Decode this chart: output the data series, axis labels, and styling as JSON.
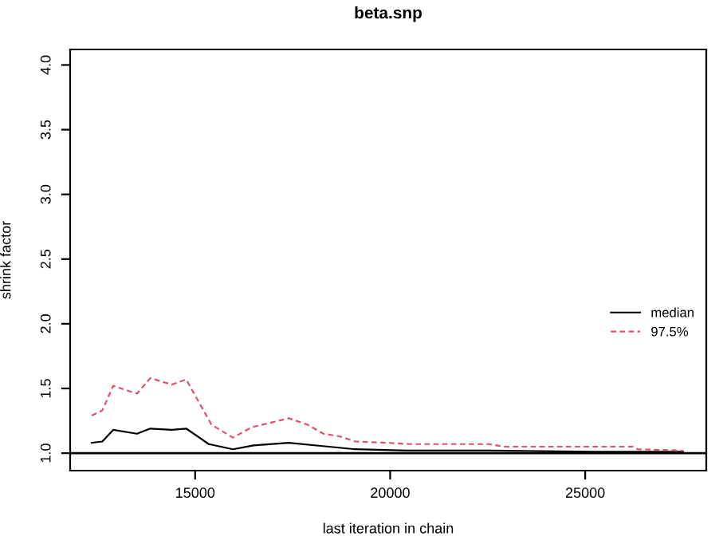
{
  "chart_data": {
    "type": "line",
    "title": "beta.snp",
    "xlabel": "last iteration in chain",
    "ylabel": "shrink factor",
    "x": [
      12350,
      12620,
      12900,
      13510,
      13850,
      14400,
      14770,
      15420,
      15970,
      16450,
      17000,
      17400,
      17880,
      18290,
      18700,
      19110,
      19930,
      20480,
      22530,
      22940,
      25260,
      26220,
      26350,
      27510
    ],
    "series": [
      {
        "name": "median",
        "color": "#000000",
        "line_style": "solid",
        "x": [
          12350,
          12620,
          12900,
          13510,
          13850,
          14400,
          14770,
          15350,
          15970,
          16500,
          17400,
          18430,
          19110,
          20480,
          22530,
          25260,
          27510
        ],
        "values": [
          1.08,
          1.09,
          1.18,
          1.15,
          1.19,
          1.18,
          1.19,
          1.07,
          1.03,
          1.06,
          1.08,
          1.05,
          1.03,
          1.02,
          1.02,
          1.01,
          1.01
        ]
      },
      {
        "name": "97.5%",
        "color": "#df536b",
        "line_style": "dashed",
        "values": [
          1.29,
          1.33,
          1.52,
          1.46,
          1.58,
          1.53,
          1.57,
          1.22,
          1.12,
          1.2,
          1.24,
          1.27,
          1.22,
          1.15,
          1.13,
          1.09,
          1.08,
          1.07,
          1.07,
          1.05,
          1.05,
          1.05,
          1.03,
          1.02
        ]
      }
    ],
    "xlim": [
      11796,
      28104
    ],
    "ylim": [
      0.865,
      4.12
    ],
    "xticks": [
      15000,
      20000,
      25000
    ],
    "yticks": [
      {
        "value": 1,
        "label": "1.0"
      },
      {
        "value": 1.5,
        "label": "1.5"
      },
      {
        "value": 2,
        "label": "2.0"
      },
      {
        "value": 2.5,
        "label": "2.5"
      },
      {
        "value": 3,
        "label": "3.0"
      },
      {
        "value": 3.5,
        "label": "3.5"
      },
      {
        "value": 4,
        "label": "4.0"
      }
    ],
    "ref_lines": [
      {
        "axis": "y",
        "value": 1,
        "color": "#000000",
        "line_style": "solid"
      }
    ],
    "grid": false,
    "legend": "right",
    "marker": "none"
  }
}
